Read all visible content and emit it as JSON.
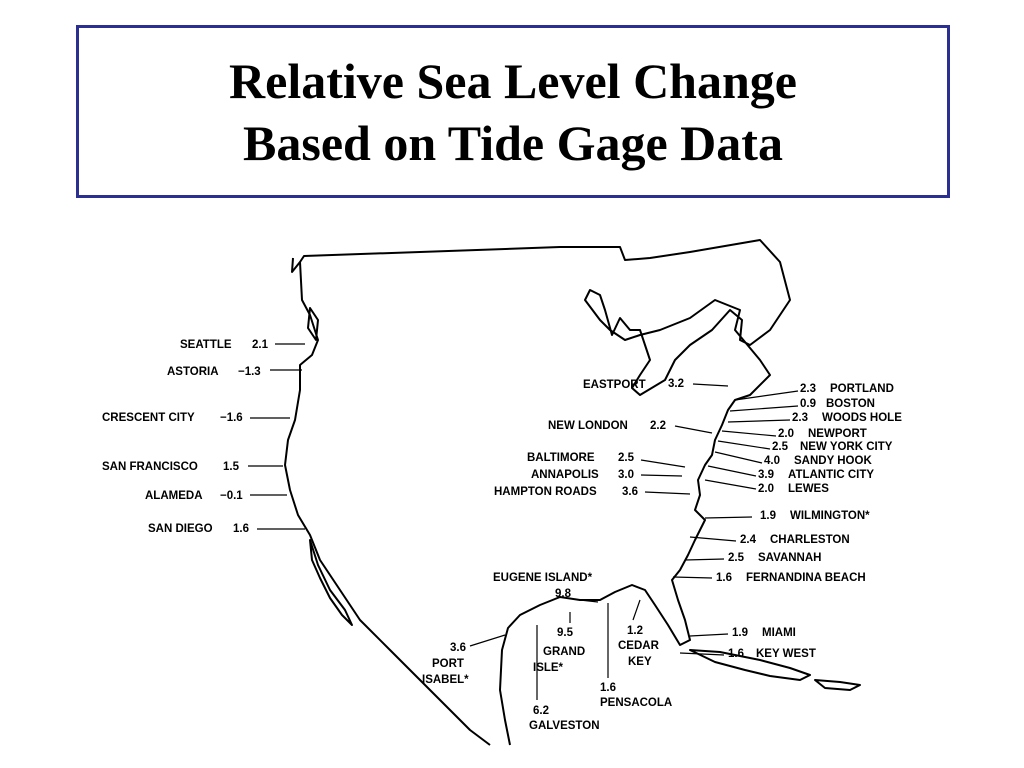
{
  "title": {
    "lines": [
      "Relative Sea Level Change",
      "Based on Tide Gage Data"
    ]
  },
  "stations": [
    {
      "name": "SEATTLE",
      "value": "2.1"
    },
    {
      "name": "ASTORIA",
      "value": "−1.3"
    },
    {
      "name": "CRESCENT CITY",
      "value": "−1.6"
    },
    {
      "name": "SAN FRANCISCO",
      "value": "1.5"
    },
    {
      "name": "ALAMEDA",
      "value": "−0.1"
    },
    {
      "name": "SAN DIEGO",
      "value": "1.6"
    },
    {
      "name": "EASTPORT",
      "value": "3.2"
    },
    {
      "name": "PORTLAND",
      "value": "2.3"
    },
    {
      "name": "BOSTON",
      "value": "0.9"
    },
    {
      "name": "WOODS HOLE",
      "value": "2.3"
    },
    {
      "name": "NEW LONDON",
      "value": "2.2"
    },
    {
      "name": "NEWPORT",
      "value": "2.0"
    },
    {
      "name": "NEW YORK CITY",
      "value": "2.5"
    },
    {
      "name": "SANDY HOOK",
      "value": "4.0"
    },
    {
      "name": "BALTIMORE",
      "value": "2.5"
    },
    {
      "name": "ATLANTIC CITY",
      "value": "3.9"
    },
    {
      "name": "ANNAPOLIS",
      "value": "3.0"
    },
    {
      "name": "LEWES",
      "value": "2.0"
    },
    {
      "name": "HAMPTON ROADS",
      "value": "3.6"
    },
    {
      "name": "WILMINGTON*",
      "value": "1.9"
    },
    {
      "name": "CHARLESTON",
      "value": "2.4"
    },
    {
      "name": "SAVANNAH",
      "value": "2.5"
    },
    {
      "name": "FERNANDINA BEACH",
      "value": "1.6"
    },
    {
      "name": "MIAMI",
      "value": "1.9"
    },
    {
      "name": "KEY WEST",
      "value": "1.6"
    },
    {
      "name": "EUGENE ISLAND*",
      "value": "9.8"
    },
    {
      "name": [
        "GRAND",
        "ISLE*"
      ],
      "value": "9.5"
    },
    {
      "name": [
        "CEDAR",
        "KEY"
      ],
      "value": "1.2"
    },
    {
      "name": "PENSACOLA",
      "value": "1.6"
    },
    {
      "name": [
        "PORT",
        "ISABEL*"
      ],
      "value": "3.6"
    },
    {
      "name": "GALVESTON",
      "value": "6.2"
    }
  ]
}
